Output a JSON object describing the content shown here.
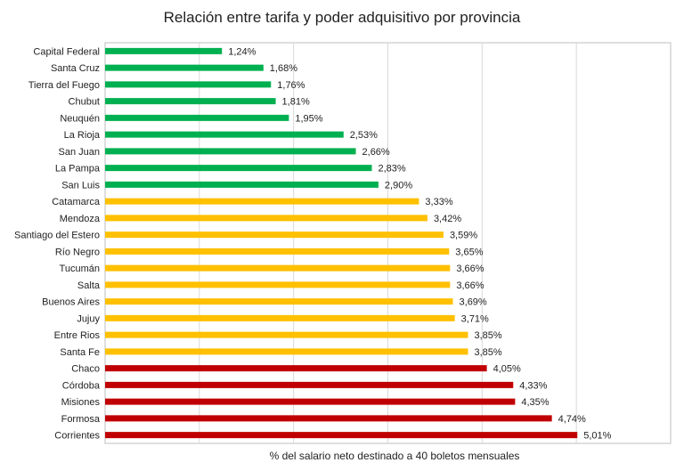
{
  "chart_data": {
    "type": "bar",
    "orientation": "horizontal",
    "title": "Relación entre tarifa y poder adquisitivo por provincia",
    "xlabel": "% del salario neto destinado a 40 boletos mensuales",
    "ylabel": "",
    "xlim": [
      0,
      6
    ],
    "grid": true,
    "legend": "none",
    "categories": [
      "Capital Federal",
      "Santa Cruz",
      "Tierra del Fuego",
      "Chubut",
      "Neuquén",
      "La Rioja",
      "San Juan",
      "La Pampa",
      "San Luis",
      "Catamarca",
      "Mendoza",
      "Santiago del Estero",
      "Río Negro",
      "Tucumán",
      "Salta",
      "Buenos Aires",
      "Jujuy",
      "Entre Rios",
      "Santa Fe",
      "Chaco",
      "Córdoba",
      "Misiones",
      "Formosa",
      "Corrientes"
    ],
    "values": [
      1.24,
      1.68,
      1.76,
      1.81,
      1.95,
      2.53,
      2.66,
      2.83,
      2.9,
      3.33,
      3.42,
      3.59,
      3.65,
      3.66,
      3.66,
      3.69,
      3.71,
      3.85,
      3.85,
      4.05,
      4.33,
      4.35,
      4.74,
      5.01
    ],
    "labels": [
      "1,24%",
      "1,68%",
      "1,76%",
      "1,81%",
      "1,95%",
      "2,53%",
      "2,66%",
      "2,83%",
      "2,90%",
      "3,33%",
      "3,42%",
      "3,59%",
      "3,65%",
      "3,66%",
      "3,66%",
      "3,69%",
      "3,71%",
      "3,85%",
      "3,85%",
      "4,05%",
      "4,33%",
      "4,35%",
      "4,74%",
      "5,01%"
    ],
    "colors": {
      "green": "#00b050",
      "yellow": "#ffc000",
      "red": "#c00000"
    },
    "bar_colors": [
      "green",
      "green",
      "green",
      "green",
      "green",
      "green",
      "green",
      "green",
      "green",
      "yellow",
      "yellow",
      "yellow",
      "yellow",
      "yellow",
      "yellow",
      "yellow",
      "yellow",
      "yellow",
      "yellow",
      "red",
      "red",
      "red",
      "red",
      "red"
    ]
  }
}
